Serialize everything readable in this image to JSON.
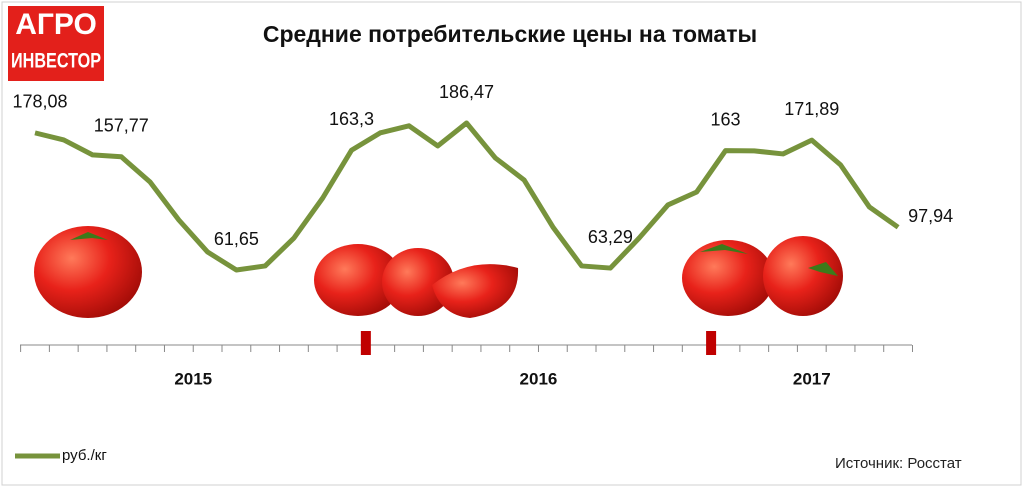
{
  "logo": {
    "line1": "АГРО",
    "line2": "ИНВЕСТОР"
  },
  "chart_data": {
    "type": "line",
    "title": "Средние потребительские цены на томаты",
    "categories": [
      null,
      null,
      null,
      null,
      null,
      null,
      null,
      null,
      null,
      null,
      null,
      null,
      null,
      null,
      null,
      null,
      null,
      null,
      null,
      null,
      null,
      null,
      null,
      null,
      null,
      null,
      null,
      null,
      null,
      null,
      null
    ],
    "groups": [
      {
        "label": "2015",
        "size": 12
      },
      {
        "label": "2016",
        "size": 12
      },
      {
        "label": "2017",
        "size": 7
      }
    ],
    "series": [
      {
        "name": "руб./кг",
        "color": "#77933c",
        "values": [
          178.08,
          172.1,
          159.4,
          157.77,
          136.4,
          104.1,
          76.9,
          61.65,
          65.1,
          88.8,
          122.8,
          163.3,
          178.1,
          184.1,
          167.0,
          186.47,
          156.8,
          138.1,
          98.2,
          65.1,
          63.29,
          88.8,
          116.9,
          127.9,
          163,
          162.8,
          160.2,
          171.89,
          150.9,
          115.2,
          97.94
        ],
        "value_labels": [
          "178,08",
          null,
          null,
          "157,77",
          null,
          null,
          null,
          "61,65",
          null,
          null,
          null,
          "163,3",
          null,
          null,
          null,
          "186,47",
          null,
          null,
          null,
          null,
          "63,29",
          null,
          null,
          null,
          "163",
          null,
          null,
          "171,89",
          null,
          null,
          "97,94"
        ]
      }
    ],
    "source": "Источник: Росстат"
  }
}
